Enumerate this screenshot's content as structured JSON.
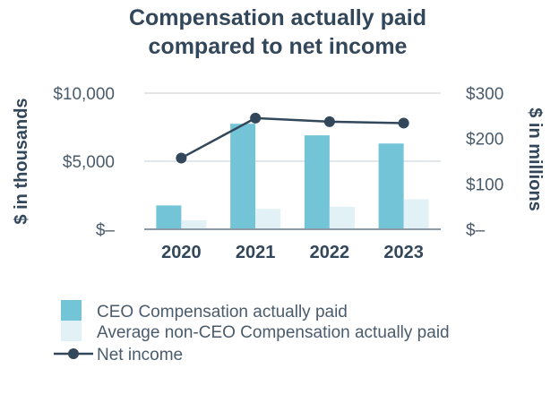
{
  "chart_data": {
    "type": "bar",
    "title_lines": [
      "Compensation actually paid",
      "compared to net income"
    ],
    "categories": [
      "2020",
      "2021",
      "2022",
      "2023"
    ],
    "series": [
      {
        "name": "CEO Compensation actually paid",
        "kind": "bar",
        "axis": "left",
        "color": "#74c4d8",
        "values": [
          1750,
          7750,
          6900,
          6300
        ]
      },
      {
        "name": "Average non-CEO Compensation actually paid",
        "kind": "bar",
        "axis": "left",
        "color": "#e1f1f6",
        "values": [
          650,
          1500,
          1650,
          2200
        ]
      },
      {
        "name": "Net income",
        "kind": "line",
        "axis": "right",
        "color": "#33475b",
        "values": [
          157,
          245,
          237,
          234
        ]
      }
    ],
    "ylabel": "$ in thousands",
    "y2label": "$ in millions",
    "ylim": [
      0,
      10000
    ],
    "y2lim": [
      0,
      300
    ],
    "yticks": [
      {
        "value": 0,
        "label": "$–"
      },
      {
        "value": 5000,
        "label": "$5,000"
      },
      {
        "value": 10000,
        "label": "$10,000"
      }
    ],
    "y2ticks": [
      {
        "value": 0,
        "label": "$–"
      },
      {
        "value": 100,
        "label": "$100"
      },
      {
        "value": 200,
        "label": "$200"
      },
      {
        "value": 300,
        "label": "$300"
      }
    ],
    "grid": true,
    "legend_position": "bottom"
  }
}
